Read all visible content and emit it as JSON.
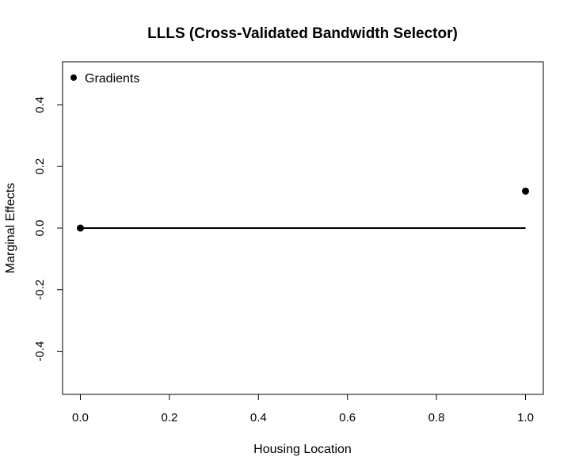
{
  "chart_data": {
    "type": "scatter",
    "title": "LLLS (Cross-Validated Bandwidth Selector)",
    "xlabel": "Housing Location",
    "ylabel": "Marginal Effects",
    "xlim": [
      -0.04,
      1.04
    ],
    "ylim": [
      -0.54,
      0.54
    ],
    "xticks": [
      0.0,
      0.2,
      0.4,
      0.6,
      0.8,
      1.0
    ],
    "xtick_labels": [
      "0.0",
      "0.2",
      "0.4",
      "0.6",
      "0.8",
      "1.0"
    ],
    "yticks": [
      -0.4,
      -0.2,
      0.0,
      0.2,
      0.4
    ],
    "ytick_labels": [
      "-0.4",
      "-0.2",
      "0.0",
      "0.2",
      "0.4"
    ],
    "series": [
      {
        "name": "Gradients",
        "x": [
          0.0,
          1.0
        ],
        "y": [
          0.0,
          0.12
        ]
      }
    ],
    "reference_line": {
      "x": [
        0.0,
        1.0
      ],
      "y": [
        0.0,
        0.0
      ]
    },
    "legend_position": "top-left",
    "grid": false
  }
}
